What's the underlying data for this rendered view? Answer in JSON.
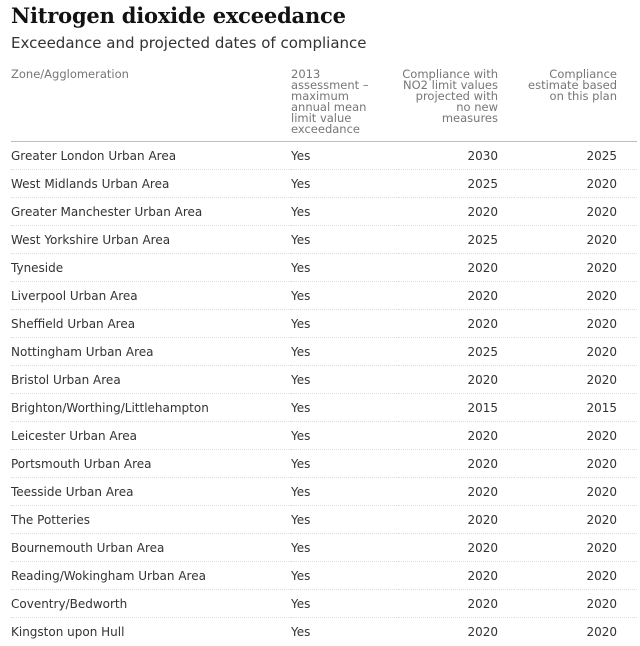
{
  "header": {
    "title": "Nitrogen dioxide exceedance",
    "subtitle": "Exceedance and projected dates of compliance"
  },
  "table": {
    "columns": [
      "Zone/Agglomeration",
      "2013 assessment – maximum annual mean limit value exceedance",
      "Compliance with NO2 limit values projected with no new measures",
      "Compliance estimate based on this plan"
    ],
    "rows": [
      [
        "Greater London Urban Area",
        "Yes",
        "2030",
        "2025"
      ],
      [
        "West Midlands Urban Area",
        "Yes",
        "2025",
        "2020"
      ],
      [
        "Greater Manchester Urban Area",
        "Yes",
        "2020",
        "2020"
      ],
      [
        "West Yorkshire Urban Area",
        "Yes",
        "2025",
        "2020"
      ],
      [
        "Tyneside",
        "Yes",
        "2020",
        "2020"
      ],
      [
        "Liverpool Urban Area",
        "Yes",
        "2020",
        "2020"
      ],
      [
        "Sheffield Urban Area",
        "Yes",
        "2020",
        "2020"
      ],
      [
        "Nottingham Urban Area",
        "Yes",
        "2025",
        "2020"
      ],
      [
        "Bristol Urban Area",
        "Yes",
        "2020",
        "2020"
      ],
      [
        "Brighton/Worthing/Littlehampton",
        "Yes",
        "2015",
        "2015"
      ],
      [
        "Leicester Urban Area",
        "Yes",
        "2020",
        "2020"
      ],
      [
        "Portsmouth Urban Area",
        "Yes",
        "2020",
        "2020"
      ],
      [
        "Teesside Urban Area",
        "Yes",
        "2020",
        "2020"
      ],
      [
        "The Potteries",
        "Yes",
        "2020",
        "2020"
      ],
      [
        "Bournemouth Urban Area",
        "Yes",
        "2020",
        "2020"
      ],
      [
        "Reading/Wokingham Urban Area",
        "Yes",
        "2020",
        "2020"
      ],
      [
        "Coventry/Bedworth",
        "Yes",
        "2020",
        "2020"
      ],
      [
        "Kingston upon Hull",
        "Yes",
        "2020",
        "2020"
      ]
    ]
  }
}
